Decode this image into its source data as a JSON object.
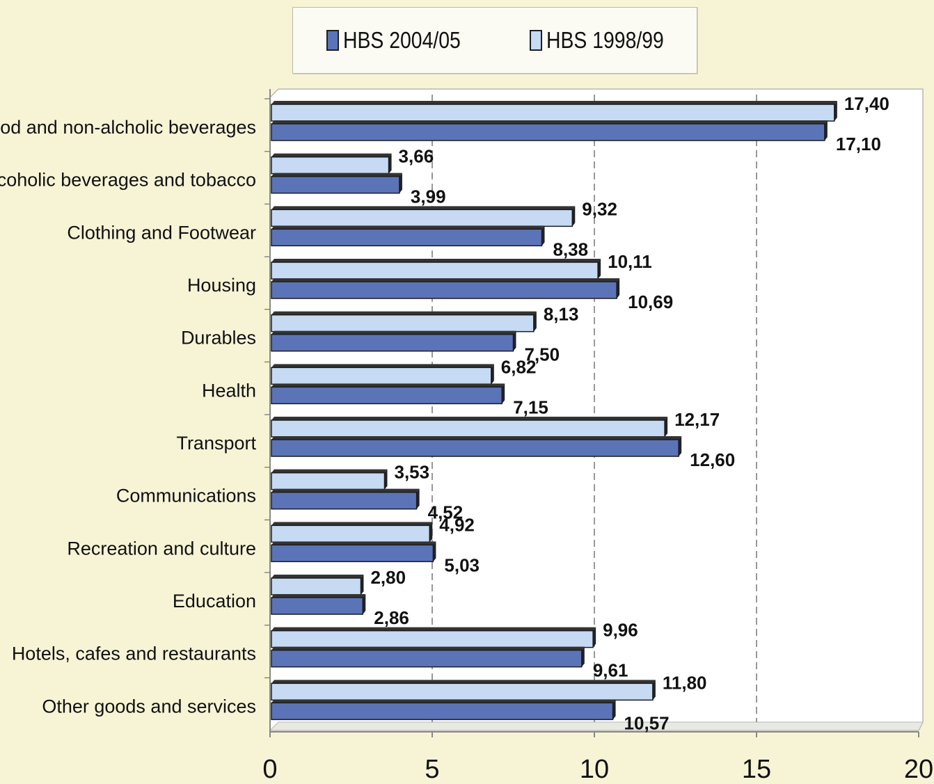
{
  "chart_data": {
    "type": "bar",
    "orientation": "horizontal",
    "categories": [
      "Food and non-alcholic beverages",
      "Alcoholic beverages and tobacco",
      "Clothing and Footwear",
      "Housing",
      "Durables",
      "Health",
      "Transport",
      "Communications",
      "Recreation and culture",
      "Education",
      "Hotels, cafes and restaurants",
      "Other goods and services"
    ],
    "series": [
      {
        "name": "HBS 2004/05",
        "color": "#5b74b8",
        "values": [
          17.1,
          3.99,
          8.38,
          10.69,
          7.5,
          7.15,
          12.6,
          4.52,
          5.03,
          2.86,
          9.61,
          10.57
        ],
        "labels": [
          "17,10",
          "3,99",
          "8,38",
          "10,69",
          "7,50",
          "7,15",
          "12,60",
          "4,52",
          "5,03",
          "2,86",
          "9,61",
          "10,57"
        ]
      },
      {
        "name": "HBS 1998/99",
        "color": "#c6daf4",
        "values": [
          17.4,
          3.66,
          9.32,
          10.11,
          8.13,
          6.82,
          12.17,
          3.53,
          4.92,
          2.8,
          9.96,
          11.8
        ],
        "labels": [
          "17,40",
          "3,66",
          "9,32",
          "10,11",
          "8,13",
          "6,82",
          "12,17",
          "3,53",
          "4,92",
          "2,80",
          "9,96",
          "11,80"
        ]
      }
    ],
    "xlim": [
      0,
      20
    ],
    "xticks": [
      "0",
      "5",
      "10",
      "15",
      "20"
    ],
    "grid": true,
    "legend_position": "top",
    "title": "",
    "xlabel": "",
    "ylabel": ""
  }
}
